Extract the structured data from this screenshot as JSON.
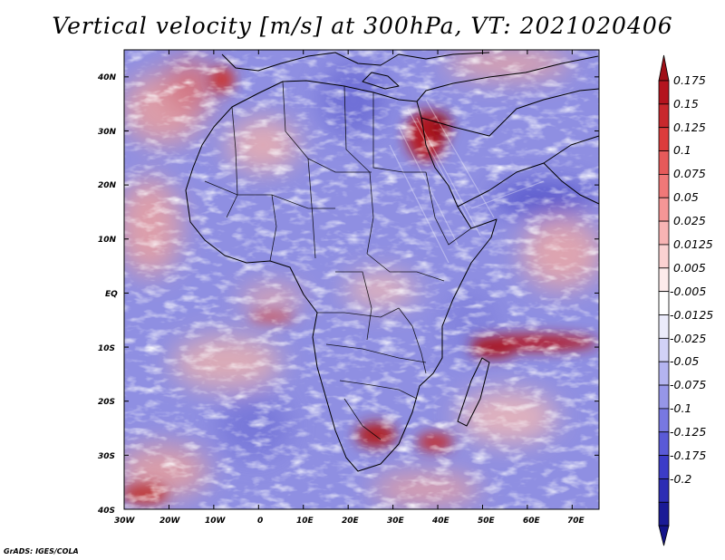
{
  "title": "Vertical velocity [m/s] at 300hPa, VT: 2021020406",
  "credit": "GrADS: IGES/COLA",
  "map": {
    "projection": "latlon",
    "lon_range": [
      -30,
      76
    ],
    "lat_range": [
      -40,
      45
    ],
    "field": "vertical velocity",
    "units": "m/s",
    "level": "300hPa",
    "valid_time": "2021020406",
    "lat_ticks": [
      {
        "value": 40,
        "label": "40N"
      },
      {
        "value": 30,
        "label": "30N"
      },
      {
        "value": 20,
        "label": "20N"
      },
      {
        "value": 10,
        "label": "10N"
      },
      {
        "value": 0,
        "label": "EQ"
      },
      {
        "value": -10,
        "label": "10S"
      },
      {
        "value": -20,
        "label": "20S"
      },
      {
        "value": -30,
        "label": "30S"
      },
      {
        "value": -40,
        "label": "40S"
      }
    ],
    "lon_ticks": [
      {
        "value": -30,
        "label": "30W"
      },
      {
        "value": -20,
        "label": "20W"
      },
      {
        "value": -10,
        "label": "10W"
      },
      {
        "value": 0,
        "label": "0"
      },
      {
        "value": 10,
        "label": "10E"
      },
      {
        "value": 20,
        "label": "20E"
      },
      {
        "value": 30,
        "label": "30E"
      },
      {
        "value": 40,
        "label": "40E"
      },
      {
        "value": 50,
        "label": "50E"
      },
      {
        "value": 60,
        "label": "60E"
      },
      {
        "value": 70,
        "label": "70E"
      }
    ],
    "strong_ascent_regions": [
      {
        "name": "red-sea-levant",
        "lon": 36,
        "lat": 29
      },
      {
        "name": "southern-africa",
        "lon": 27,
        "lat": -29
      },
      {
        "name": "indian-ocean-band",
        "lon": 60,
        "lat": -8
      },
      {
        "name": "mozambique",
        "lon": 37,
        "lat": -30
      }
    ]
  },
  "colorbar": {
    "labels": [
      "0.175",
      "0.15",
      "0.125",
      "0.1",
      "0.075",
      "0.05",
      "0.025",
      "0.0125",
      "0.005",
      "-0.005",
      "-0.0125",
      "-0.025",
      "-0.05",
      "-0.075",
      "-0.1",
      "-0.125",
      "-0.175",
      "-0.2"
    ],
    "colors": [
      "#b4141e",
      "#c8282d",
      "#dc3c3c",
      "#e65a5a",
      "#f07878",
      "#f59696",
      "#f8b4b4",
      "#fbd2d2",
      "#fdebeb",
      "#ffffff",
      "#ebebfb",
      "#d2d2f6",
      "#b4b4f0",
      "#9696e8",
      "#7878e1",
      "#5a5ad7",
      "#3c3cc8",
      "#2d2db4",
      "#1a1a96"
    ],
    "extend_top_color": "#a01018",
    "extend_bottom_color": "#14148a"
  }
}
